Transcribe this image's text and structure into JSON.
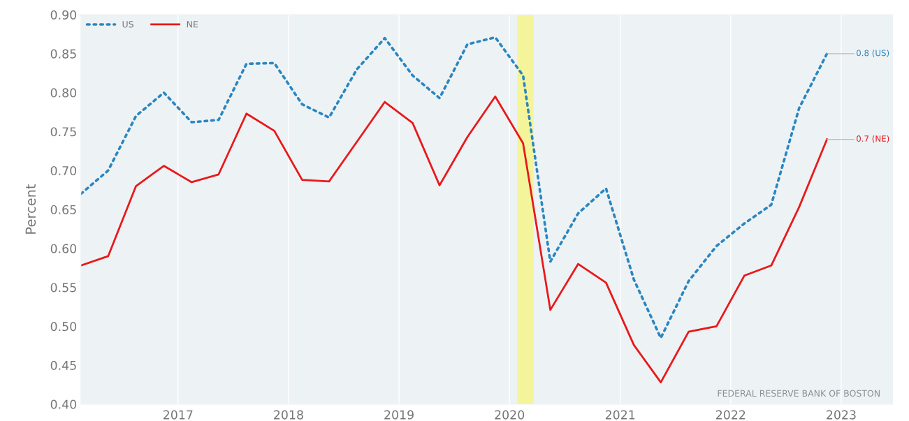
{
  "chart_data": {
    "type": "line",
    "ylabel": "Percent",
    "x": [
      "2016-02-15",
      "2016-05-15",
      "2016-08-15",
      "2016-11-15",
      "2017-02-15",
      "2017-05-15",
      "2017-08-15",
      "2017-11-15",
      "2018-02-15",
      "2018-05-15",
      "2018-08-15",
      "2018-11-15",
      "2019-02-15",
      "2019-05-15",
      "2019-08-15",
      "2019-11-15",
      "2020-02-15",
      "2020-05-15",
      "2020-08-15",
      "2020-11-15",
      "2021-02-15",
      "2021-05-15",
      "2021-08-15",
      "2021-11-15",
      "2022-02-15",
      "2022-05-15",
      "2022-08-15",
      "2022-11-15"
    ],
    "series": [
      {
        "name": "US",
        "color": "#2b86c0",
        "line_style": "dotted",
        "values": [
          0.67,
          0.7,
          0.77,
          0.8,
          0.762,
          0.765,
          0.837,
          0.838,
          0.785,
          0.768,
          0.83,
          0.87,
          0.822,
          0.793,
          0.862,
          0.871,
          0.822,
          0.583,
          0.645,
          0.677,
          0.56,
          0.485,
          0.558,
          0.603,
          0.632,
          0.656,
          0.78,
          0.85
        ]
      },
      {
        "name": "NE",
        "color": "#e8191a",
        "line_style": "solid",
        "values": [
          0.578,
          0.59,
          0.68,
          0.706,
          0.685,
          0.695,
          0.773,
          0.751,
          0.688,
          0.686,
          0.737,
          0.788,
          0.761,
          0.681,
          0.743,
          0.795,
          0.735,
          0.521,
          0.58,
          0.556,
          0.476,
          0.428,
          0.493,
          0.5,
          0.565,
          0.578,
          0.653,
          0.74
        ]
      }
    ],
    "xlim": [
      "2016-02-15",
      "2023-06-20"
    ],
    "xticks": [
      {
        "value": "2017",
        "label": "2017"
      },
      {
        "value": "2018",
        "label": "2018"
      },
      {
        "value": "2019",
        "label": "2019"
      },
      {
        "value": "2020",
        "label": "2020"
      },
      {
        "value": "2021",
        "label": "2021"
      },
      {
        "value": "2022",
        "label": "2022"
      },
      {
        "value": "2023",
        "label": "2023"
      }
    ],
    "ylim": [
      0.4,
      0.9
    ],
    "yticks": [
      {
        "value": 0.4,
        "label": "0.40"
      },
      {
        "value": 0.45,
        "label": "0.45"
      },
      {
        "value": 0.5,
        "label": "0.50"
      },
      {
        "value": 0.55,
        "label": "0.55"
      },
      {
        "value": 0.6,
        "label": "0.60"
      },
      {
        "value": 0.65,
        "label": "0.65"
      },
      {
        "value": 0.7,
        "label": "0.70"
      },
      {
        "value": 0.75,
        "label": "0.75"
      },
      {
        "value": 0.8,
        "label": "0.80"
      },
      {
        "value": 0.85,
        "label": "0.85"
      },
      {
        "value": 0.9,
        "label": "0.90"
      }
    ],
    "bands": [
      {
        "axis": "x",
        "from": "2020-01-27",
        "to": "2020-03-21",
        "color": "#f4f59a"
      }
    ],
    "annotations": [
      {
        "text": "0.8 (US)",
        "x": "2022-11-15",
        "y": 0.85
      },
      {
        "text": "0.7 (NE)",
        "x": "2022-11-15",
        "y": 0.74
      },
      "FEDERAL RESERVE BANK OF BOSTON"
    ],
    "grid": "x",
    "legend": "top left"
  }
}
